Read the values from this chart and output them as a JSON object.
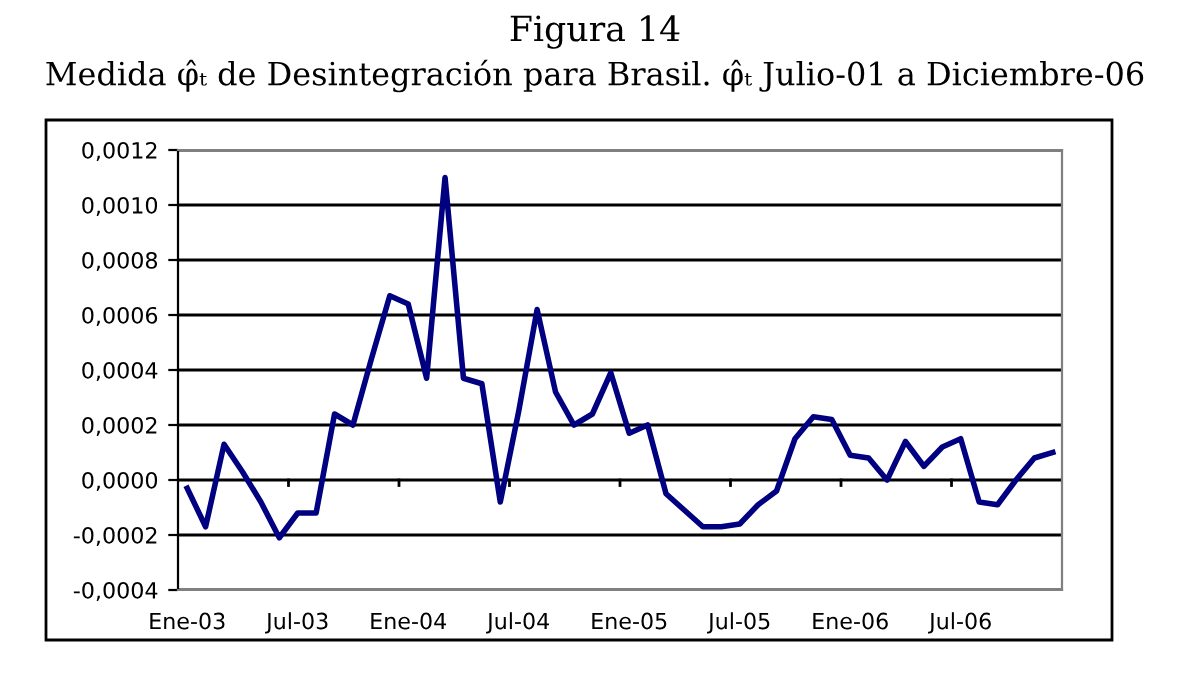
{
  "chart_data": {
    "type": "line",
    "title": "Figura 14",
    "subtitle": "Medida φ̂ₜ de Desintegración para Brasil. φ̂ₜ Julio-01 a Diciembre-06",
    "categories": [
      "Ene-03",
      null,
      null,
      null,
      null,
      null,
      "Jul-03",
      null,
      null,
      null,
      null,
      null,
      "Ene-04",
      null,
      null,
      null,
      null,
      null,
      "Jul-04",
      null,
      null,
      null,
      null,
      null,
      "Ene-05",
      null,
      null,
      null,
      null,
      null,
      "Jul-05",
      null,
      null,
      null,
      null,
      null,
      "Ene-06",
      null,
      null,
      null,
      null,
      null,
      "Jul-06",
      null,
      null,
      null,
      null,
      null
    ],
    "series": [
      {
        "color": "#000080",
        "values": [
          -3e-05,
          -0.00017,
          0.00013,
          3e-05,
          -8e-05,
          -0.00021,
          -0.00012,
          -0.00012,
          0.00024,
          0.0002,
          0.00044,
          0.00067,
          0.00064,
          0.00037,
          0.0011,
          0.00037,
          0.00035,
          -8e-05,
          0.00025,
          0.00062,
          0.00032,
          0.0002,
          0.00024,
          0.00039,
          0.00017,
          0.0002,
          -5e-05,
          -0.00011,
          -0.00017,
          -0.00017,
          -0.00016,
          -9e-05,
          -4e-05,
          0.00015,
          0.00023,
          0.00022,
          9e-05,
          8e-05,
          0.0,
          0.00014,
          5e-05,
          0.00012,
          0.00015,
          -8e-05,
          -9e-05,
          0.0,
          8e-05,
          0.0001
        ]
      }
    ],
    "ylim": [
      -0.0004,
      0.0012
    ],
    "yticks": [
      {
        "value": -0.0004,
        "label": "-0,0004"
      },
      {
        "value": -0.0002,
        "label": "-0,0002"
      },
      {
        "value": 0,
        "label": "0,0000"
      },
      {
        "value": 0.0002,
        "label": "0,0002"
      },
      {
        "value": 0.0004,
        "label": "0,0004"
      },
      {
        "value": 0.0006,
        "label": "0,0006"
      },
      {
        "value": 0.0008,
        "label": "0,0008"
      },
      {
        "value": 0.001,
        "label": "0,0010"
      },
      {
        "value": 0.0012,
        "label": "0,0012"
      }
    ],
    "grid": "y",
    "marker": "none",
    "line_style": "solid"
  }
}
